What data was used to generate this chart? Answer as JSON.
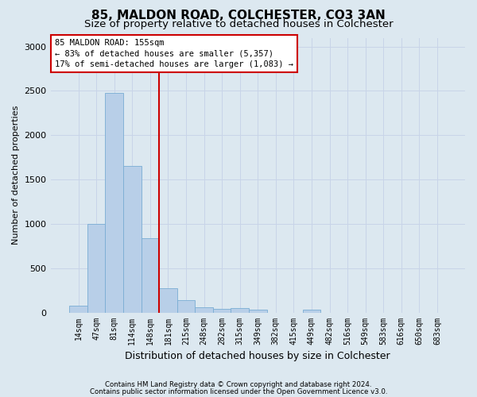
{
  "title": "85, MALDON ROAD, COLCHESTER, CO3 3AN",
  "subtitle": "Size of property relative to detached houses in Colchester",
  "xlabel": "Distribution of detached houses by size in Colchester",
  "ylabel": "Number of detached properties",
  "categories": [
    "14sqm",
    "47sqm",
    "81sqm",
    "114sqm",
    "148sqm",
    "181sqm",
    "215sqm",
    "248sqm",
    "282sqm",
    "315sqm",
    "349sqm",
    "382sqm",
    "415sqm",
    "449sqm",
    "482sqm",
    "516sqm",
    "549sqm",
    "583sqm",
    "616sqm",
    "650sqm",
    "683sqm"
  ],
  "values": [
    75,
    1000,
    2480,
    1650,
    840,
    270,
    140,
    60,
    45,
    50,
    35,
    0,
    0,
    35,
    0,
    0,
    0,
    0,
    0,
    0,
    0
  ],
  "bar_color": "#b8cfe8",
  "bar_edge_color": "#7aadd4",
  "red_line_index": 4.5,
  "property_line_label": "85 MALDON ROAD: 155sqm",
  "annotation_line1": "← 83% of detached houses are smaller (5,357)",
  "annotation_line2": "17% of semi-detached houses are larger (1,083) →",
  "red_line_color": "#cc0000",
  "annotation_box_color": "#ffffff",
  "annotation_box_edge": "#cc0000",
  "grid_color": "#c8d4e8",
  "background_color": "#dce8f0",
  "ylim": [
    0,
    3100
  ],
  "yticks": [
    0,
    500,
    1000,
    1500,
    2000,
    2500,
    3000
  ],
  "footer_line1": "Contains HM Land Registry data © Crown copyright and database right 2024.",
  "footer_line2": "Contains public sector information licensed under the Open Government Licence v3.0.",
  "title_fontsize": 11,
  "subtitle_fontsize": 9.5,
  "ylabel_fontsize": 8,
  "xlabel_fontsize": 9,
  "tick_fontsize": 7,
  "annotation_fontsize": 7.5
}
